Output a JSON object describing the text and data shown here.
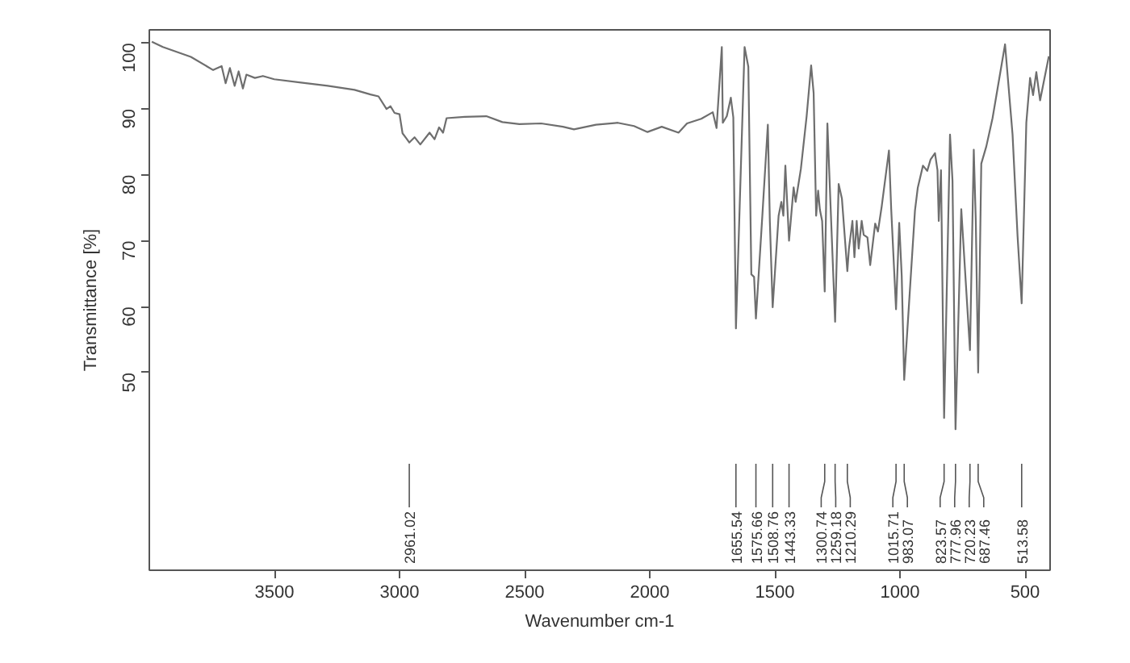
{
  "chart_data": {
    "type": "line",
    "xlabel": "Wavenumber cm-1",
    "ylabel": "Transmittance [%]",
    "color": "#6e6e6e",
    "xlim": [
      4000,
      400
    ],
    "ylim": [
      20,
      102
    ],
    "xticks": [
      3500,
      3000,
      2500,
      2000,
      1500,
      1000,
      500
    ],
    "yticks": [
      50,
      60,
      70,
      80,
      90,
      100
    ],
    "x": [
      3990,
      3946,
      3834,
      3745,
      3711,
      3695,
      3678,
      3659,
      3643,
      3626,
      3612,
      3578,
      3546,
      3501,
      3394,
      3287,
      3180,
      3116,
      3084,
      3052,
      3036,
      3020,
      3000,
      2988,
      2972,
      2961.02,
      2940,
      2917,
      2880,
      2860,
      2842,
      2826,
      2812,
      2740,
      2653,
      2589,
      2521,
      2434,
      2347,
      2303,
      2215,
      2128,
      2063,
      2009,
      1952,
      1885,
      1851,
      1794,
      1748,
      1733,
      1712,
      1708,
      1692,
      1676,
      1666,
      1655.54,
      1621,
      1606,
      1594,
      1583,
      1575.66,
      1550,
      1528,
      1520,
      1508.76,
      1485,
      1474,
      1466,
      1458,
      1443.33,
      1425,
      1417,
      1396,
      1373,
      1355,
      1345,
      1335,
      1327,
      1320,
      1311,
      1300.74,
      1290,
      1275,
      1259.18,
      1245,
      1232,
      1210.29,
      1204,
      1190,
      1182,
      1173,
      1165,
      1153,
      1145,
      1130,
      1119,
      1099,
      1088,
      1073,
      1044,
      1035,
      1015.71,
      1003,
      993,
      983.07,
      940,
      929,
      908,
      891,
      878,
      860,
      850,
      845,
      836,
      823.57,
      800,
      790,
      777.96,
      755,
      720.23,
      705,
      697,
      687.46,
      675,
      655,
      630,
      580,
      550,
      530,
      513.58,
      495,
      480,
      468,
      455,
      440,
      405
    ],
    "values": [
      100.2,
      99.4,
      97.9,
      95.9,
      96.5,
      93.9,
      96.2,
      93.5,
      95.7,
      93.1,
      95.2,
      94.7,
      95.0,
      94.5,
      94.0,
      93.5,
      92.9,
      92.2,
      91.9,
      90.0,
      90.4,
      89.4,
      89.2,
      86.3,
      85.5,
      84.9,
      85.7,
      84.6,
      86.4,
      85.4,
      87.2,
      86.4,
      88.6,
      88.8,
      88.9,
      88.0,
      87.7,
      87.8,
      87.3,
      86.9,
      87.6,
      87.9,
      87.4,
      86.5,
      87.3,
      86.4,
      87.8,
      88.5,
      89.5,
      87.1,
      99.4,
      87.9,
      88.9,
      91.7,
      88.7,
      56.7,
      99.4,
      96.4,
      64.9,
      64.5,
      58.2,
      73.8,
      87.6,
      72.9,
      59.9,
      73.8,
      75.9,
      73.8,
      81.4,
      70.0,
      78.1,
      75.9,
      80.9,
      88.9,
      96.6,
      92.4,
      73.8,
      77.6,
      74.7,
      73.0,
      62.3,
      87.8,
      73.0,
      57.7,
      78.6,
      76.4,
      65.4,
      68.8,
      73.0,
      67.5,
      73.0,
      68.8,
      73.0,
      70.9,
      70.5,
      66.3,
      72.6,
      71.4,
      75.2,
      83.7,
      74.8,
      59.6,
      72.7,
      64.7,
      48.9,
      74.6,
      78.0,
      81.4,
      80.6,
      82.3,
      83.3,
      80.7,
      73.0,
      80.7,
      43.1,
      86.1,
      79.1,
      41.4,
      74.8,
      53.4,
      83.8,
      73.1,
      50.0,
      81.7,
      84.3,
      88.6,
      99.8,
      86.1,
      70.7,
      60.5,
      87.9,
      94.7,
      92.1,
      95.6,
      91.3,
      98.0
    ],
    "annotations": [
      {
        "text": "2961.02",
        "x": 2961.02
      },
      {
        "text": "1655.54",
        "x": 1655.54
      },
      {
        "text": "1575.66",
        "x": 1575.66
      },
      {
        "text": "1508.76",
        "x": 1508.76
      },
      {
        "text": "1443.33",
        "x": 1443.33
      },
      {
        "text": "1300.74",
        "x": 1300.74
      },
      {
        "text": "1259.18",
        "x": 1259.18
      },
      {
        "text": "1210.29",
        "x": 1210.29
      },
      {
        "text": "1015.71",
        "x": 1015.71
      },
      {
        "text": "983.07",
        "x": 983.07
      },
      {
        "text": "823.57",
        "x": 823.57
      },
      {
        "text": "777.96",
        "x": 777.96
      },
      {
        "text": "720.23",
        "x": 720.23
      },
      {
        "text": "687.46",
        "x": 687.46
      },
      {
        "text": "513.58",
        "x": 513.58
      }
    ]
  }
}
